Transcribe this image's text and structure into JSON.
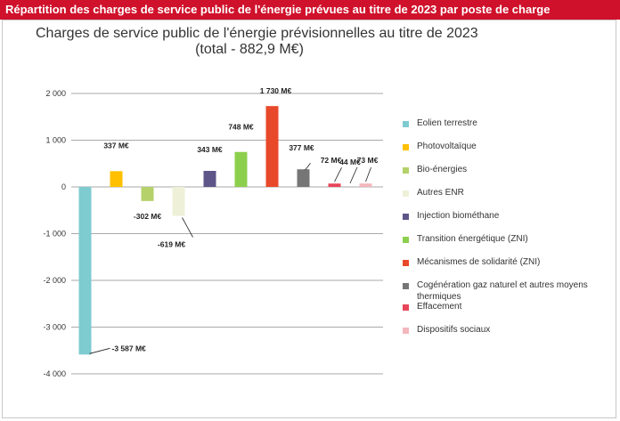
{
  "banner": "Répartition des charges de service public de l'énergie prévues au titre de 2023 par poste de charge",
  "chart_data": {
    "type": "bar",
    "title": "Charges de service public de l'énergie prévisionnelles au titre de 2023",
    "subtitle": "(total - 882,9 M€)",
    "xlabel": "",
    "ylabel": "",
    "ylim": [
      -4000,
      2000
    ],
    "yticks": [
      2000,
      1000,
      0,
      -1000,
      -2000,
      -3000,
      -4000
    ],
    "ytick_labels": [
      "2 000",
      "1 000",
      "0",
      "-1 000",
      "-2 000",
      "-3 000",
      "-4 000"
    ],
    "grid": true,
    "legend_position": "right",
    "categories": [
      "Eolien terrestre",
      "Photovoltaïque",
      "Bio-énergies",
      "Autres ENR",
      "Injection biométhane",
      "Transition énergétique (ZNI)",
      "Mécanismes de solidarité (ZNI)",
      "Cogénération gaz naturel et autres moyens thermiques",
      "Effacement",
      "Dispositifs sociaux"
    ],
    "values": [
      -3587,
      337,
      -302,
      -619,
      343,
      748,
      1730,
      377,
      72,
      73
    ],
    "data_labels": [
      "-3 587 M€",
      "337 M€",
      "-302 M€",
      "-619 M€",
      "343 M€",
      "748 M€",
      "1 730 M€",
      "377 M€",
      "72 M€",
      "73 M€"
    ],
    "extra_labels": [
      "44 M€"
    ],
    "colors": [
      "#7ecbd0",
      "#ffc000",
      "#b5d16a",
      "#eef0d8",
      "#5e5589",
      "#8ccf4d",
      "#e8492a",
      "#767676",
      "#e8465a",
      "#f3b7bb"
    ]
  }
}
